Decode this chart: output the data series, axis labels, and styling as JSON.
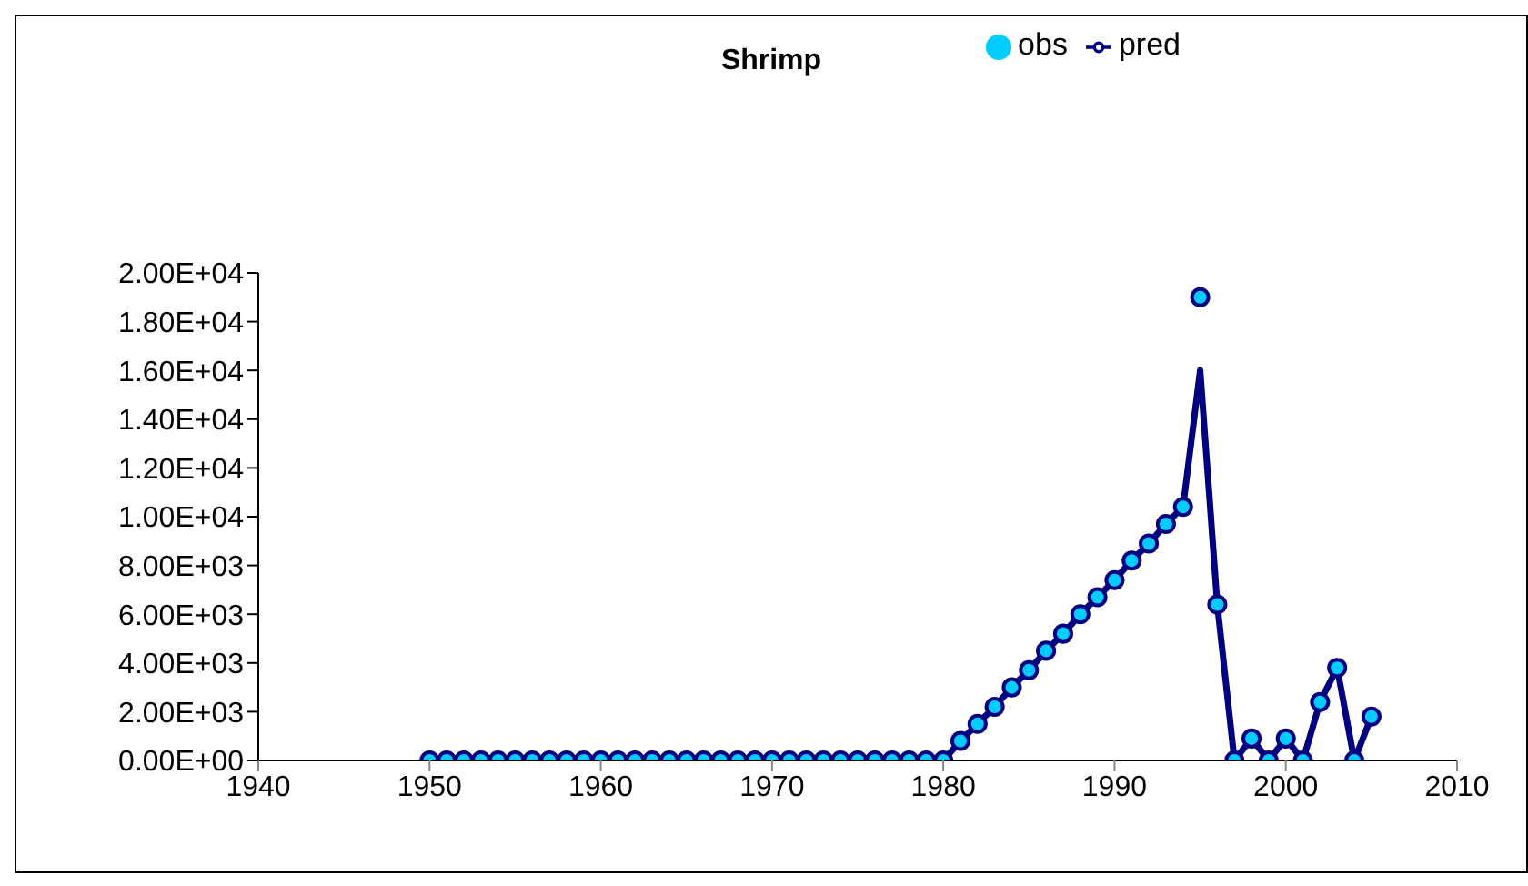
{
  "chart_data": {
    "type": "line",
    "title": "Shrimp",
    "x": [
      1950,
      1951,
      1952,
      1953,
      1954,
      1955,
      1956,
      1957,
      1958,
      1959,
      1960,
      1961,
      1962,
      1963,
      1964,
      1965,
      1966,
      1967,
      1968,
      1969,
      1970,
      1971,
      1972,
      1973,
      1974,
      1975,
      1976,
      1977,
      1978,
      1979,
      1980,
      1981,
      1982,
      1983,
      1984,
      1985,
      1986,
      1987,
      1988,
      1989,
      1990,
      1991,
      1992,
      1993,
      1994,
      1995,
      1996,
      1997,
      1998,
      1999,
      2000,
      2001,
      2002,
      2003,
      2004,
      2005
    ],
    "series": [
      {
        "name": "obs",
        "type": "scatter",
        "marker": "circle",
        "color": "#00ccff",
        "values": [
          0,
          0,
          0,
          0,
          0,
          0,
          0,
          0,
          0,
          0,
          0,
          0,
          0,
          0,
          0,
          0,
          0,
          0,
          0,
          0,
          0,
          0,
          0,
          0,
          0,
          0,
          0,
          0,
          0,
          0,
          0,
          800,
          1500,
          2200,
          3000,
          3700,
          4500,
          5200,
          6000,
          6700,
          7400,
          8200,
          8900,
          9700,
          10400,
          19000,
          6400,
          0,
          900,
          0,
          900,
          0,
          2400,
          3800,
          0,
          1800
        ]
      },
      {
        "name": "pred",
        "marker": "none",
        "color": "#000080",
        "values": [
          0,
          0,
          0,
          0,
          0,
          0,
          0,
          0,
          0,
          0,
          0,
          0,
          0,
          0,
          0,
          0,
          0,
          0,
          0,
          0,
          0,
          0,
          0,
          0,
          0,
          0,
          0,
          0,
          0,
          0,
          0,
          800,
          1500,
          2200,
          3000,
          3700,
          4500,
          5200,
          6000,
          6700,
          7400,
          8200,
          8900,
          9700,
          10400,
          16000,
          6400,
          0,
          900,
          0,
          900,
          0,
          2400,
          3800,
          0,
          1800
        ]
      }
    ],
    "xlim": [
      1940,
      2010
    ],
    "xticks": [
      1940,
      1950,
      1960,
      1970,
      1980,
      1990,
      2000,
      2010
    ],
    "ylim": [
      0,
      20000
    ],
    "yticks": [
      {
        "value": 0,
        "label": "0.00E+00"
      },
      {
        "value": 2000,
        "label": "2.00E+03"
      },
      {
        "value": 4000,
        "label": "4.00E+03"
      },
      {
        "value": 6000,
        "label": "6.00E+03"
      },
      {
        "value": 8000,
        "label": "8.00E+03"
      },
      {
        "value": 10000,
        "label": "1.00E+04"
      },
      {
        "value": 12000,
        "label": "1.20E+04"
      },
      {
        "value": 14000,
        "label": "1.40E+04"
      },
      {
        "value": 16000,
        "label": "1.60E+04"
      },
      {
        "value": 18000,
        "label": "1.80E+04"
      },
      {
        "value": 20000,
        "label": "2.00E+04"
      }
    ],
    "grid": false,
    "legend": "top right",
    "line_style": "solid"
  }
}
